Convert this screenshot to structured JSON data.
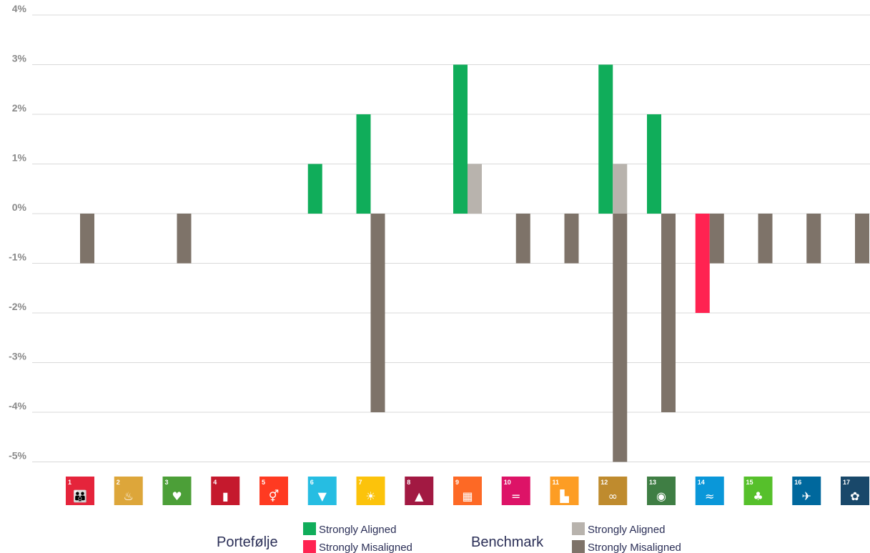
{
  "chart_data": {
    "type": "bar",
    "title": "",
    "xlabel": "",
    "ylabel": "",
    "ylim": [
      -5,
      4
    ],
    "grid": true,
    "y_ticks": [
      "4%",
      "3%",
      "2%",
      "1%",
      "0%",
      "-1%",
      "-2%",
      "-3%",
      "-4%",
      "-5%"
    ],
    "y_tick_values": [
      4,
      3,
      2,
      1,
      0,
      -1,
      -2,
      -3,
      -4,
      -5
    ],
    "categories": [
      "1",
      "2",
      "3",
      "4",
      "5",
      "6",
      "7",
      "8",
      "9",
      "10",
      "11",
      "12",
      "13",
      "14",
      "15",
      "16",
      "17"
    ],
    "category_icons": [
      {
        "number": "1",
        "icon": "people-icon",
        "color": "#e5243b"
      },
      {
        "number": "2",
        "icon": "bowl-icon",
        "color": "#dda63a"
      },
      {
        "number": "3",
        "icon": "heartbeat-icon",
        "color": "#4c9f38"
      },
      {
        "number": "4",
        "icon": "book-icon",
        "color": "#c5192d"
      },
      {
        "number": "5",
        "icon": "gender-icon",
        "color": "#ff3a21"
      },
      {
        "number": "6",
        "icon": "water-drop-icon",
        "color": "#26bde2"
      },
      {
        "number": "7",
        "icon": "sun-icon",
        "color": "#fcc30b"
      },
      {
        "number": "8",
        "icon": "growth-chart-icon",
        "color": "#a21942"
      },
      {
        "number": "9",
        "icon": "cubes-icon",
        "color": "#fd6925"
      },
      {
        "number": "10",
        "icon": "equal-icon",
        "color": "#dd1367"
      },
      {
        "number": "11",
        "icon": "city-icon",
        "color": "#fd9d24"
      },
      {
        "number": "12",
        "icon": "infinity-icon",
        "color": "#bf8b2e"
      },
      {
        "number": "13",
        "icon": "eye-icon",
        "color": "#3f7e44"
      },
      {
        "number": "14",
        "icon": "fish-icon",
        "color": "#0a97d9"
      },
      {
        "number": "15",
        "icon": "tree-icon",
        "color": "#56c02b"
      },
      {
        "number": "16",
        "icon": "dove-icon",
        "color": "#00689d"
      },
      {
        "number": "17",
        "icon": "flower-icon",
        "color": "#19486a"
      }
    ],
    "series": [
      {
        "group": "Portefølje",
        "name": "Strongly Aligned",
        "color": "#10ad5a",
        "values": [
          0,
          0,
          0,
          0,
          0,
          1,
          2,
          0,
          3,
          0,
          0,
          3,
          2,
          0,
          0,
          0,
          0
        ]
      },
      {
        "group": "Portefølje",
        "name": "Strongly Misaligned",
        "color": "#ff2351",
        "values": [
          0,
          0,
          0,
          0,
          0,
          0,
          0,
          0,
          0,
          0,
          0,
          0,
          0,
          -2,
          0,
          0,
          0
        ]
      },
      {
        "group": "Benchmark",
        "name": "Strongly Aligned",
        "color": "#b8b3ad",
        "values": [
          0,
          0,
          0,
          0,
          0,
          0,
          0,
          0,
          1,
          0,
          0,
          1,
          0,
          0,
          0,
          0,
          0
        ]
      },
      {
        "group": "Benchmark",
        "name": "Strongly Misaligned",
        "color": "#7e7369",
        "values": [
          -1,
          0,
          -1,
          0,
          0,
          0,
          -4,
          0,
          0,
          -1,
          -1,
          -5,
          -4,
          -1,
          -1,
          -1,
          -1
        ]
      }
    ],
    "legend": {
      "placement": "bottom",
      "groups": [
        {
          "title": "Portefølje",
          "items": [
            {
              "label": "Strongly Aligned",
              "color": "#10ad5a"
            },
            {
              "label": "Strongly Misaligned",
              "color": "#ff2351"
            }
          ]
        },
        {
          "title": "Benchmark",
          "items": [
            {
              "label": "Strongly Aligned",
              "color": "#b8b3ad"
            },
            {
              "label": "Strongly Misaligned",
              "color": "#7e7369"
            }
          ]
        }
      ]
    }
  }
}
